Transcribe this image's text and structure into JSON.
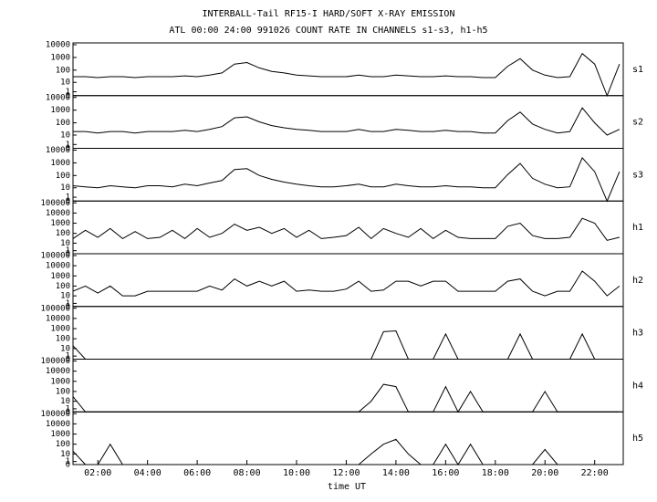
{
  "chart_data": {
    "type": "line",
    "layout": "stacked-panels",
    "yscale": "log1p",
    "color": "#000000",
    "title": "INTERBALL-Tail RF15-I HARD/SOFT X-RAY EMISSION",
    "subtitle": "ATL 00:00 24:00 991026  COUNT RATE IN CHANNELS s1-s3, h1-h5",
    "x_label": "time UT",
    "xlim": [
      1.0,
      23.15
    ],
    "xticks": [
      {
        "value": 2,
        "label": "02:00"
      },
      {
        "value": 4,
        "label": "04:00"
      },
      {
        "value": 6,
        "label": "06:00"
      },
      {
        "value": 8,
        "label": "08:00"
      },
      {
        "value": 10,
        "label": "10:00"
      },
      {
        "value": 12,
        "label": "12:00"
      },
      {
        "value": 14,
        "label": "14:00"
      },
      {
        "value": 16,
        "label": "16:00"
      },
      {
        "value": 18,
        "label": "18:00"
      },
      {
        "value": 20,
        "label": "20:00"
      },
      {
        "value": 22,
        "label": "22:00"
      }
    ],
    "x": [
      1.0,
      1.5,
      2.0,
      2.5,
      3.0,
      3.5,
      4.0,
      4.5,
      5.0,
      5.5,
      6.0,
      6.5,
      7.0,
      7.5,
      8.0,
      8.5,
      9.0,
      9.5,
      10.0,
      10.5,
      11.0,
      11.5,
      12.0,
      12.5,
      13.0,
      13.5,
      14.0,
      14.5,
      15.0,
      15.5,
      16.0,
      16.5,
      17.0,
      17.5,
      18.0,
      18.5,
      19.0,
      19.5,
      20.0,
      20.5,
      21.0,
      21.5,
      22.0,
      22.5,
      23.0
    ],
    "series": [
      {
        "name": "s1",
        "ylim": [
          0,
          10000
        ],
        "yticks": [
          0,
          1,
          10,
          100,
          1000,
          10000
        ],
        "values": [
          30,
          30,
          25,
          30,
          30,
          25,
          30,
          30,
          30,
          35,
          30,
          40,
          60,
          300,
          400,
          150,
          80,
          60,
          40,
          35,
          30,
          30,
          30,
          40,
          30,
          30,
          40,
          35,
          30,
          30,
          35,
          30,
          30,
          25,
          25,
          200,
          800,
          100,
          40,
          25,
          30,
          2000,
          300,
          0,
          300
        ]
      },
      {
        "name": "s2",
        "ylim": [
          0,
          10000
        ],
        "yticks": [
          0,
          1,
          10,
          100,
          1000,
          10000
        ],
        "values": [
          20,
          20,
          15,
          20,
          20,
          15,
          20,
          20,
          20,
          25,
          20,
          30,
          50,
          250,
          300,
          120,
          60,
          40,
          30,
          25,
          20,
          20,
          20,
          30,
          20,
          20,
          30,
          25,
          20,
          20,
          25,
          20,
          20,
          15,
          15,
          150,
          700,
          80,
          30,
          15,
          20,
          1500,
          100,
          10,
          30
        ]
      },
      {
        "name": "s3",
        "ylim": [
          0,
          10000
        ],
        "yticks": [
          0,
          1,
          10,
          100,
          1000,
          10000
        ],
        "values": [
          15,
          12,
          10,
          15,
          12,
          10,
          15,
          15,
          12,
          20,
          15,
          25,
          40,
          300,
          350,
          100,
          50,
          30,
          20,
          15,
          12,
          12,
          15,
          20,
          12,
          12,
          20,
          15,
          12,
          12,
          15,
          12,
          12,
          10,
          10,
          120,
          900,
          60,
          20,
          10,
          12,
          2500,
          200,
          0,
          200
        ]
      },
      {
        "name": "h1",
        "ylim": [
          0,
          100000
        ],
        "yticks": [
          0,
          1,
          10,
          100,
          1000,
          10000,
          100000
        ],
        "values": [
          30,
          200,
          40,
          300,
          30,
          150,
          30,
          40,
          200,
          30,
          300,
          40,
          100,
          800,
          200,
          400,
          100,
          300,
          40,
          200,
          30,
          40,
          60,
          400,
          30,
          300,
          100,
          40,
          300,
          30,
          200,
          40,
          30,
          30,
          30,
          500,
          1000,
          60,
          30,
          30,
          40,
          3000,
          1000,
          20,
          40
        ]
      },
      {
        "name": "h2",
        "ylim": [
          0,
          100000
        ],
        "yticks": [
          0,
          1,
          10,
          100,
          1000,
          10000,
          100000
        ],
        "values": [
          30,
          100,
          20,
          100,
          10,
          10,
          30,
          30,
          30,
          30,
          30,
          100,
          40,
          500,
          100,
          300,
          100,
          300,
          30,
          40,
          30,
          30,
          50,
          300,
          30,
          40,
          300,
          300,
          100,
          300,
          300,
          30,
          30,
          30,
          30,
          300,
          500,
          30,
          10,
          30,
          30,
          3000,
          300,
          10,
          100
        ]
      },
      {
        "name": "h3",
        "ylim": [
          0,
          100000
        ],
        "yticks": [
          0,
          1,
          10,
          100,
          1000,
          10000,
          100000
        ],
        "values": [
          20,
          0,
          0,
          0,
          0,
          0,
          0,
          0,
          0,
          0,
          0,
          0,
          0,
          0,
          0,
          0,
          0,
          0,
          0,
          0,
          0,
          0,
          0,
          0,
          0,
          500,
          600,
          0,
          0,
          0,
          300,
          0,
          0,
          0,
          0,
          0,
          300,
          0,
          0,
          0,
          0,
          300,
          0,
          0,
          0
        ]
      },
      {
        "name": "h4",
        "ylim": [
          0,
          100000
        ],
        "yticks": [
          0,
          1,
          10,
          100,
          1000,
          10000,
          100000
        ],
        "values": [
          30,
          0,
          0,
          0,
          0,
          0,
          0,
          0,
          0,
          0,
          0,
          0,
          0,
          0,
          0,
          0,
          0,
          0,
          0,
          0,
          0,
          0,
          0,
          0,
          10,
          500,
          300,
          0,
          0,
          0,
          300,
          0,
          100,
          0,
          0,
          0,
          0,
          0,
          100,
          0,
          0,
          0,
          0,
          0,
          0
        ]
      },
      {
        "name": "h5",
        "ylim": [
          0,
          100000
        ],
        "yticks": [
          0,
          1,
          10,
          100,
          1000,
          10000,
          100000
        ],
        "values": [
          20,
          0,
          0,
          100,
          0,
          0,
          0,
          0,
          0,
          0,
          0,
          0,
          0,
          0,
          0,
          0,
          0,
          0,
          0,
          0,
          0,
          0,
          0,
          0,
          10,
          100,
          300,
          10,
          0,
          0,
          100,
          0,
          100,
          0,
          0,
          0,
          0,
          0,
          30,
          0,
          0,
          0,
          0,
          0,
          0
        ]
      }
    ]
  }
}
